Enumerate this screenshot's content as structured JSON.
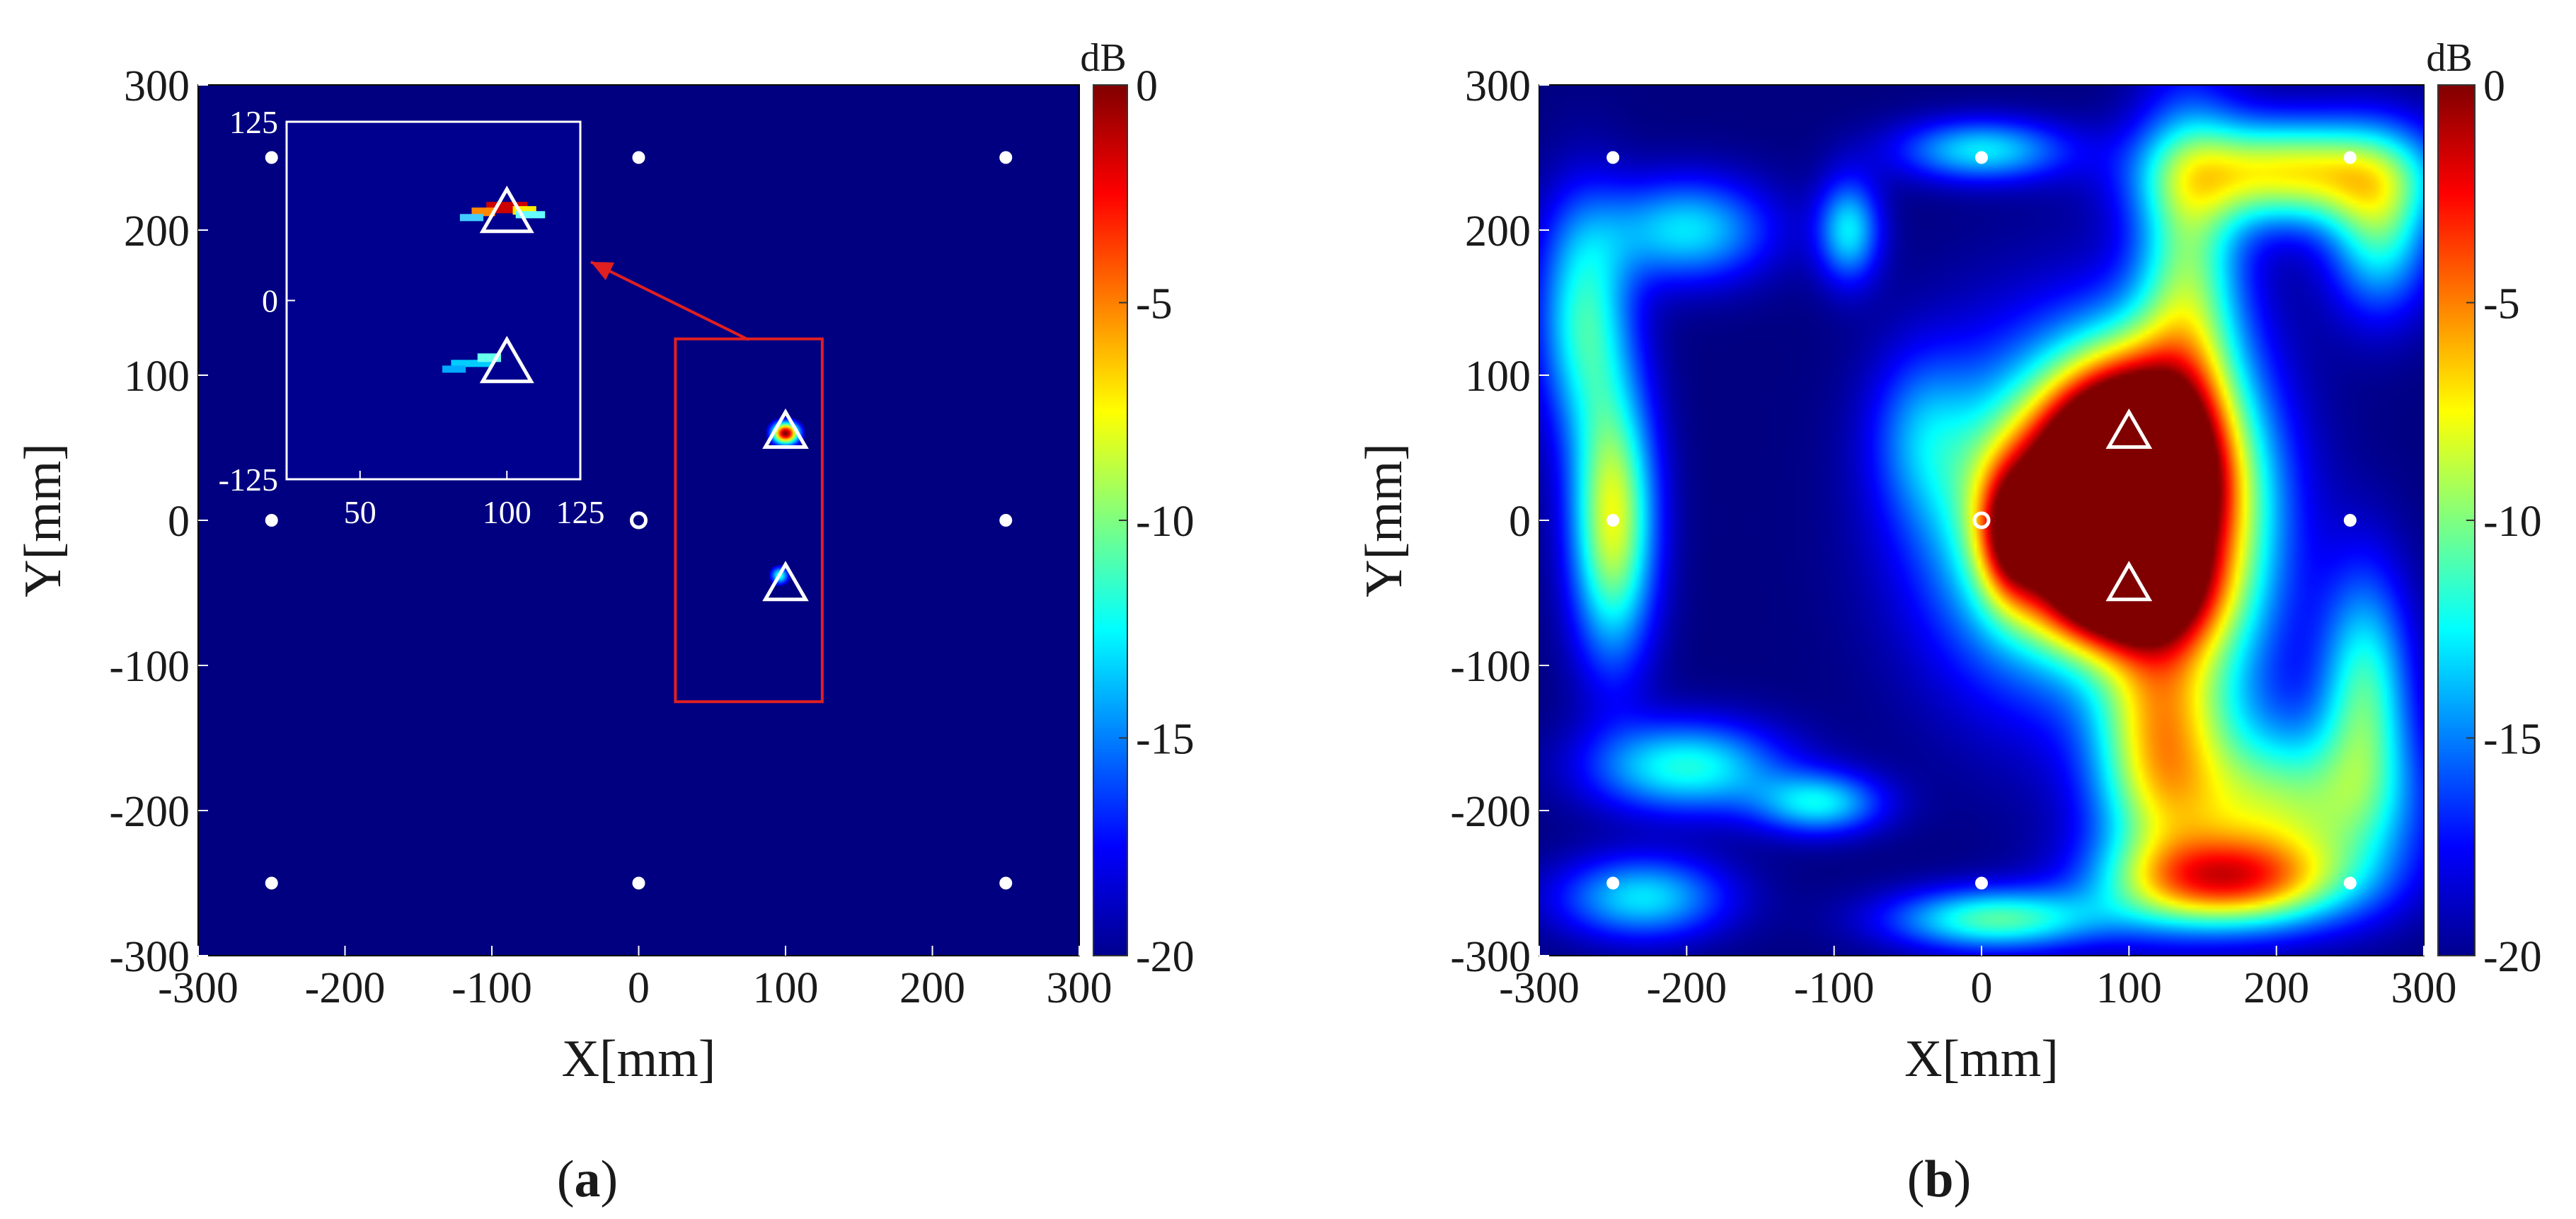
{
  "chart_data": [
    {
      "type": "heatmap",
      "panel": "a",
      "panel_label": "a",
      "xlabel": "X[mm]",
      "ylabel": "Y[mm]",
      "xlim": [
        -300,
        300
      ],
      "ylim": [
        -300,
        300
      ],
      "xticks": [
        -300,
        -200,
        -100,
        0,
        100,
        200,
        300
      ],
      "yticks": [
        300,
        200,
        100,
        0,
        -100,
        -200,
        -300
      ],
      "colorbar": {
        "title": "dB",
        "range": [
          -20,
          0
        ],
        "ticks": [
          0,
          -5,
          -10,
          -15,
          -20
        ]
      },
      "sensors": [
        [
          -250,
          250
        ],
        [
          0,
          250
        ],
        [
          250,
          250
        ],
        [
          -250,
          0
        ],
        [
          250,
          0
        ],
        [
          -250,
          -250
        ],
        [
          0,
          -250
        ],
        [
          250,
          -250
        ]
      ],
      "reference_point": [
        0,
        0
      ],
      "targets": [
        [
          100,
          60
        ],
        [
          100,
          -45
        ]
      ],
      "hot_spots": [
        {
          "x": 100,
          "y": 60,
          "sx": 6,
          "sy": 5,
          "amp": 1.0
        },
        {
          "x": 96,
          "y": -38,
          "sx": 4,
          "sy": 4,
          "amp": 0.42
        }
      ],
      "background_db": -20,
      "highlight_region": {
        "x": [
          25,
          125
        ],
        "y": [
          -125,
          125
        ]
      },
      "inset": {
        "xlim": [
          25,
          125
        ],
        "ylim": [
          -125,
          125
        ],
        "xticks": [
          50,
          100,
          125
        ],
        "yticks": [
          125,
          0,
          -125
        ]
      }
    },
    {
      "type": "heatmap",
      "panel": "b",
      "panel_label": "b",
      "xlabel": "X[mm]",
      "ylabel": "Y[mm]",
      "xlim": [
        -300,
        300
      ],
      "ylim": [
        -300,
        300
      ],
      "xticks": [
        -300,
        -200,
        -100,
        0,
        100,
        200,
        300
      ],
      "yticks": [
        300,
        200,
        100,
        0,
        -100,
        -200,
        -300
      ],
      "colorbar": {
        "title": "dB",
        "range": [
          -20,
          0
        ],
        "ticks": [
          0,
          -5,
          -10,
          -15,
          -20
        ]
      },
      "sensors": [
        [
          -250,
          250
        ],
        [
          0,
          250
        ],
        [
          250,
          250
        ],
        [
          -250,
          0
        ],
        [
          250,
          0
        ],
        [
          -250,
          -250
        ],
        [
          0,
          -250
        ],
        [
          250,
          -250
        ]
      ],
      "reference_point": [
        0,
        0
      ],
      "targets": [
        [
          100,
          60
        ],
        [
          100,
          -45
        ]
      ],
      "background_db": -20,
      "blobs": [
        {
          "x": 100,
          "y": 50,
          "sx": 38,
          "sy": 48,
          "amp": 1.0
        },
        {
          "x": 85,
          "y": 10,
          "sx": 48,
          "sy": 42,
          "amp": 0.8
        },
        {
          "x": 95,
          "y": -50,
          "sx": 38,
          "sy": 28,
          "amp": 0.72
        },
        {
          "x": 50,
          "y": 0,
          "sx": 60,
          "sy": 80,
          "amp": 0.55
        },
        {
          "x": 150,
          "y": -10,
          "sx": 40,
          "sy": 90,
          "amp": 0.45
        },
        {
          "x": 140,
          "y": 175,
          "sx": 25,
          "sy": 80,
          "amp": 0.42
        },
        {
          "x": 210,
          "y": 240,
          "sx": 60,
          "sy": 25,
          "amp": 0.62
        },
        {
          "x": 270,
          "y": 200,
          "sx": 25,
          "sy": 40,
          "amp": 0.4
        },
        {
          "x": 165,
          "y": -250,
          "sx": 55,
          "sy": 22,
          "amp": 0.66
        },
        {
          "x": 200,
          "y": -200,
          "sx": 60,
          "sy": 40,
          "amp": 0.5
        },
        {
          "x": 260,
          "y": -120,
          "sx": 22,
          "sy": 60,
          "amp": 0.42
        },
        {
          "x": 120,
          "y": -150,
          "sx": 30,
          "sy": 60,
          "amp": 0.5
        },
        {
          "x": -250,
          "y": 0,
          "sx": 20,
          "sy": 65,
          "amp": 0.6
        },
        {
          "x": -270,
          "y": 140,
          "sx": 22,
          "sy": 55,
          "amp": 0.4
        },
        {
          "x": -200,
          "y": 200,
          "sx": 40,
          "sy": 25,
          "amp": 0.35
        },
        {
          "x": -90,
          "y": 200,
          "sx": 15,
          "sy": 25,
          "amp": 0.35
        },
        {
          "x": -200,
          "y": -170,
          "sx": 45,
          "sy": 22,
          "amp": 0.4
        },
        {
          "x": -110,
          "y": -195,
          "sx": 30,
          "sy": 15,
          "amp": 0.35
        },
        {
          "x": 20,
          "y": -10,
          "sx": 15,
          "sy": 30,
          "amp": 0.45
        },
        {
          "x": 0,
          "y": 255,
          "sx": 40,
          "sy": 15,
          "amp": 0.35
        },
        {
          "x": -40,
          "y": 60,
          "sx": 25,
          "sy": 40,
          "amp": 0.2
        },
        {
          "x": -230,
          "y": -260,
          "sx": 40,
          "sy": 20,
          "amp": 0.35
        },
        {
          "x": 10,
          "y": -275,
          "sx": 50,
          "sy": 15,
          "amp": 0.45
        }
      ]
    }
  ]
}
